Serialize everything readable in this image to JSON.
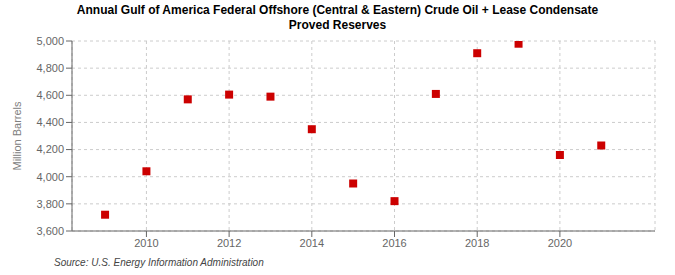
{
  "chart_data": {
    "type": "scatter",
    "title": "Annual Gulf of America Federal Offshore (Central & Eastern) Crude Oil + Lease Condensate\nProved Reserves",
    "y_label": "Million Barrels",
    "annotations": [
      "Source: U.S. Energy Information Administration"
    ],
    "x": [
      2009,
      2010,
      2011,
      2012,
      2013,
      2014,
      2015,
      2016,
      2017,
      2018,
      2019,
      2020,
      2021
    ],
    "values": [
      3720,
      4040,
      4570,
      4605,
      4590,
      4350,
      3950,
      3820,
      4610,
      4910,
      4980,
      4160,
      4230
    ],
    "color": "#CC0000",
    "marker": "square",
    "xlim": [
      2008.2,
      2022.3
    ],
    "xticks": [
      2010,
      2012,
      2014,
      2016,
      2018,
      2020
    ],
    "ylim": [
      3600,
      5000
    ],
    "yticks": [
      {
        "value": 3600,
        "label": "3,600"
      },
      {
        "value": 3800,
        "label": "3,800"
      },
      {
        "value": 4000,
        "label": "4,000"
      },
      {
        "value": 4200,
        "label": "4,200"
      },
      {
        "value": 4400,
        "label": "4,400"
      },
      {
        "value": 4600,
        "label": "4,600"
      },
      {
        "value": 4800,
        "label": "4,800"
      },
      {
        "value": 5000,
        "label": "5,000"
      }
    ],
    "grid": true
  }
}
